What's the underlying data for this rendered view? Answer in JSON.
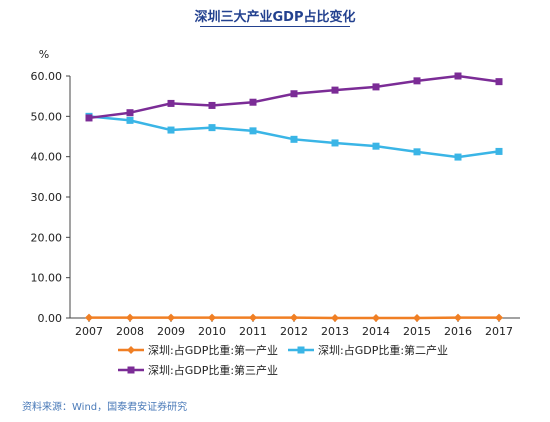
{
  "title": "深圳三大产业GDP占比变化",
  "source": "资料来源：Wind，国泰君安证券研究",
  "chart_data": {
    "type": "line",
    "ylabel": "%",
    "ylim": [
      0,
      60
    ],
    "yticks": [
      "0.00",
      "10.00",
      "20.00",
      "30.00",
      "40.00",
      "50.00",
      "60.00"
    ],
    "categories": [
      "2007",
      "2008",
      "2009",
      "2010",
      "2011",
      "2012",
      "2013",
      "2014",
      "2015",
      "2016",
      "2017"
    ],
    "grid": false,
    "legend_position": "bottom",
    "series": [
      {
        "name": "深圳:占GDP比重:第一产业",
        "color": "#f07f24",
        "marker": "diamond",
        "values": [
          0.1,
          0.1,
          0.1,
          0.1,
          0.1,
          0.1,
          0.0,
          0.0,
          0.0,
          0.1,
          0.1
        ]
      },
      {
        "name": "深圳:占GDP比重:第二产业",
        "color": "#3ab5e6",
        "marker": "square",
        "values": [
          50.0,
          49.0,
          46.6,
          47.2,
          46.4,
          44.3,
          43.4,
          42.6,
          41.2,
          39.9,
          41.3
        ]
      },
      {
        "name": "深圳:占GDP比重:第三产业",
        "color": "#7b2c96",
        "marker": "square",
        "values": [
          49.6,
          50.9,
          53.2,
          52.7,
          53.5,
          55.6,
          56.5,
          57.3,
          58.8,
          60.0,
          58.6
        ]
      }
    ]
  }
}
